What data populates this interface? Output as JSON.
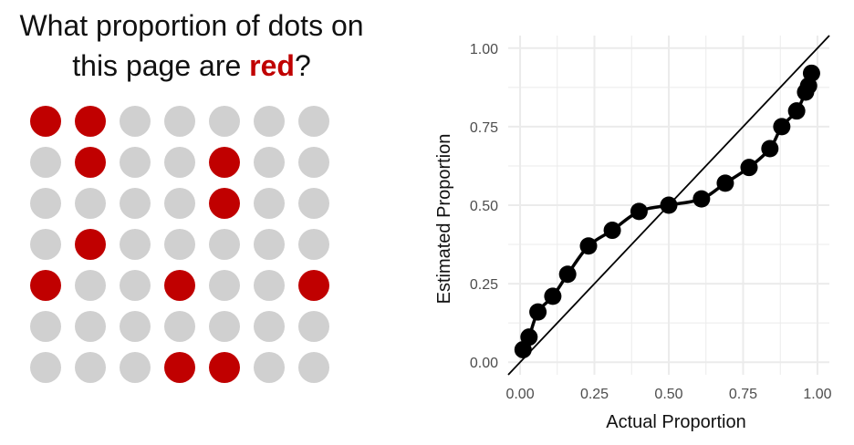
{
  "question": {
    "line1": "What proportion of dots on",
    "line2_before": "this page are ",
    "line2_red": "red",
    "line2_after": "?"
  },
  "colors": {
    "red": "#c00000",
    "gray": "#d0d0d0",
    "point": "#000000",
    "grid": "#ebebeb"
  },
  "dot_grid": {
    "rows": [
      [
        1,
        1,
        0,
        0,
        0,
        0,
        0
      ],
      [
        0,
        1,
        0,
        0,
        1,
        0,
        0
      ],
      [
        0,
        0,
        0,
        0,
        1,
        0,
        0
      ],
      [
        0,
        1,
        0,
        0,
        0,
        0,
        0
      ],
      [
        1,
        0,
        0,
        1,
        0,
        0,
        1
      ],
      [
        0,
        0,
        0,
        0,
        0,
        0,
        0
      ],
      [
        0,
        0,
        0,
        1,
        1,
        0,
        0
      ]
    ]
  },
  "chart_data": {
    "type": "line",
    "xlabel": "Actual Proportion",
    "ylabel": "Estimated Proportion",
    "xlim": [
      -0.04,
      1.04
    ],
    "ylim": [
      -0.04,
      1.04
    ],
    "x_ticks": [
      "0.00",
      "0.25",
      "0.50",
      "0.75",
      "1.00"
    ],
    "y_ticks": [
      "0.00",
      "0.25",
      "0.50",
      "0.75",
      "1.00"
    ],
    "x_tick_values": [
      0,
      0.25,
      0.5,
      0.75,
      1.0
    ],
    "y_tick_values": [
      0,
      0.25,
      0.5,
      0.75,
      1.0
    ],
    "grid": true,
    "reference_line": "y = x",
    "series": [
      {
        "x": [
          0.01,
          0.03,
          0.06,
          0.11,
          0.16,
          0.23,
          0.31,
          0.4,
          0.5,
          0.61,
          0.69,
          0.77,
          0.84,
          0.88,
          0.93,
          0.96,
          0.97,
          0.98
        ],
        "y": [
          0.04,
          0.08,
          0.16,
          0.21,
          0.28,
          0.37,
          0.42,
          0.48,
          0.5,
          0.52,
          0.57,
          0.62,
          0.68,
          0.75,
          0.8,
          0.86,
          0.88,
          0.92
        ]
      }
    ]
  }
}
